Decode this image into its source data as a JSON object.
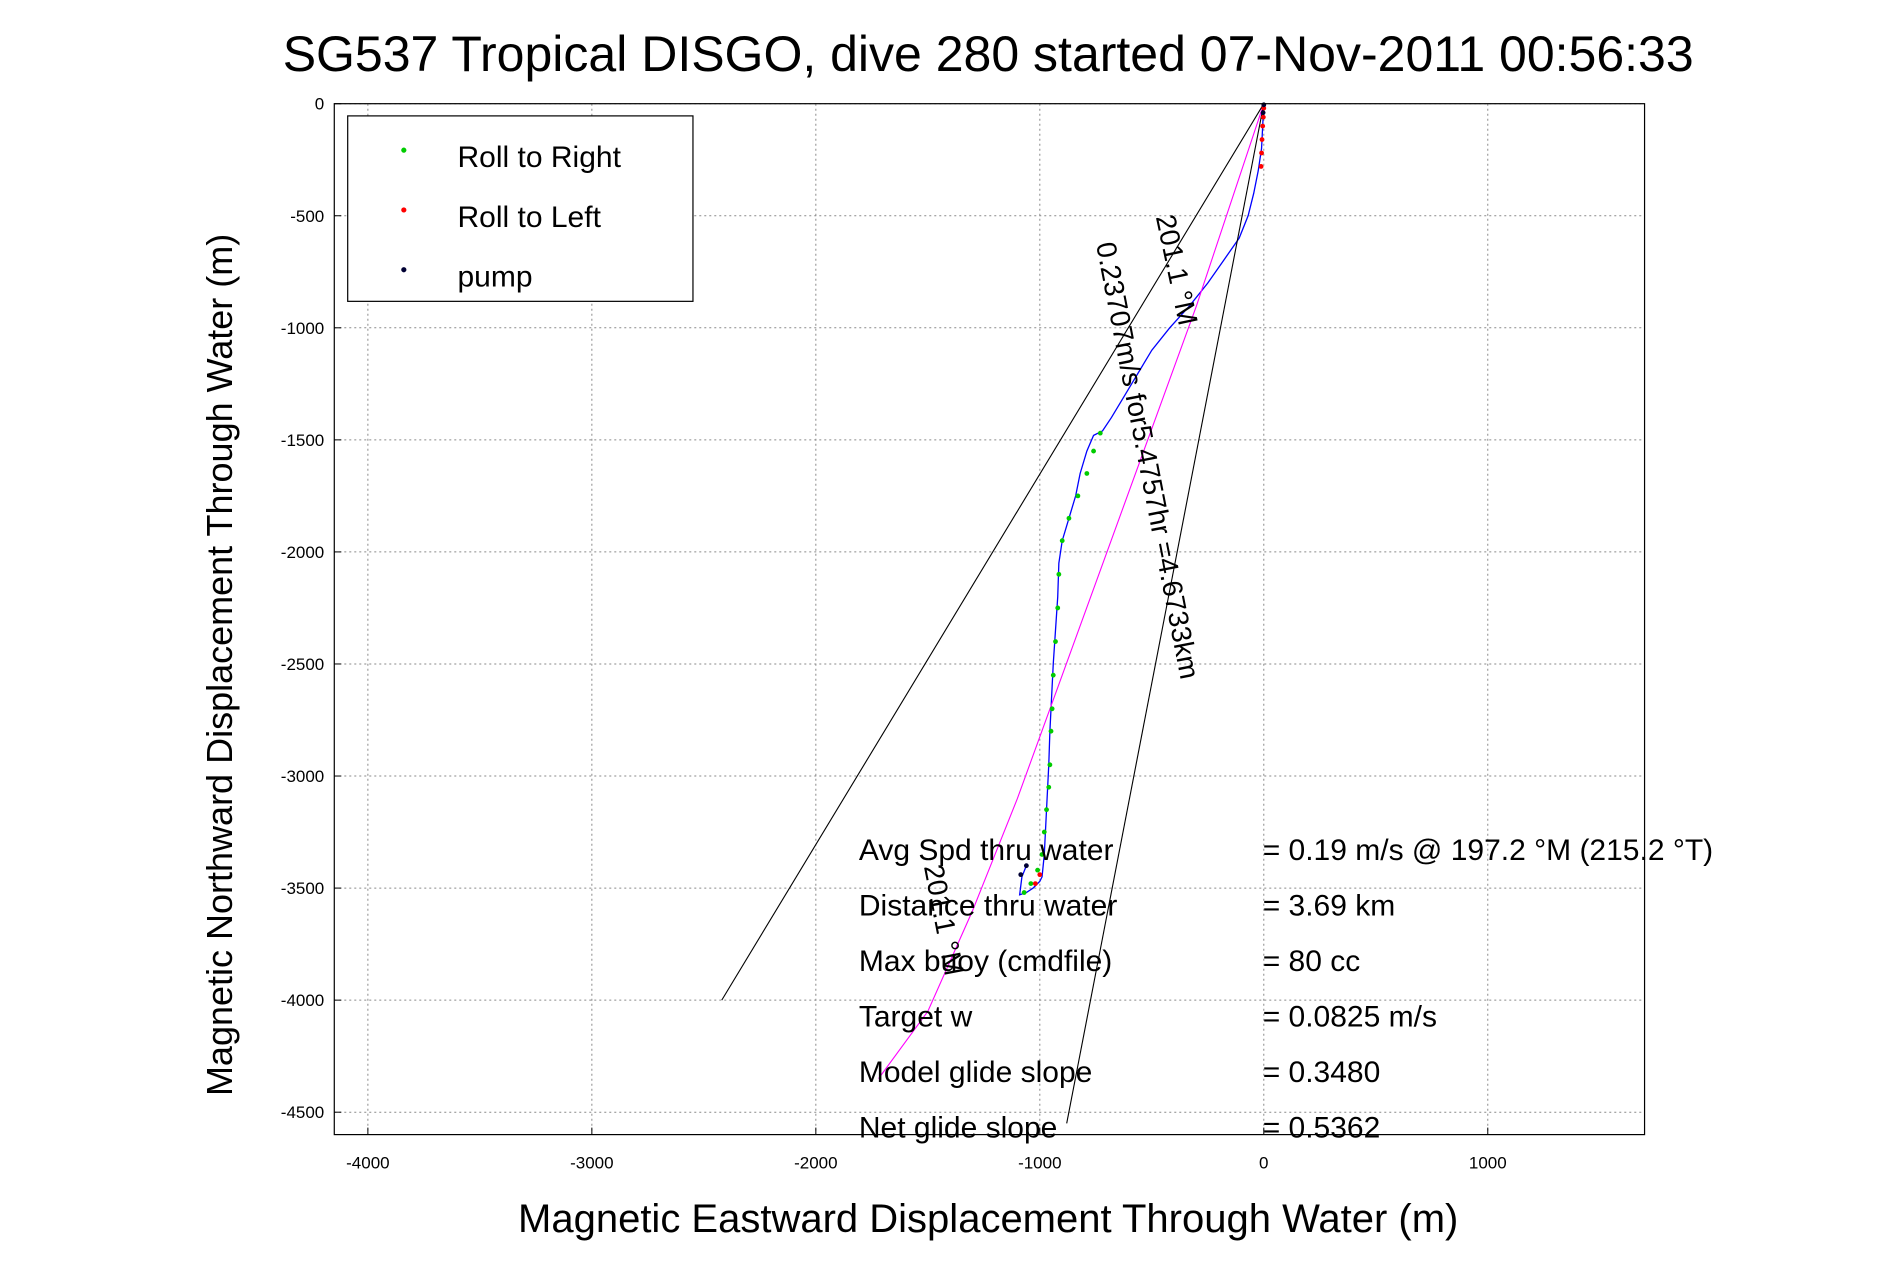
{
  "chart_data": {
    "type": "scatter",
    "title": "SG537 Tropical DISGO, dive 280 started 07-Nov-2011 00:56:33",
    "xlabel": "Magnetic Eastward Displacement Through Water (m)",
    "ylabel": "Magnetic Northward Displacement Through Water (m)",
    "xlim": [
      -4150,
      1700
    ],
    "ylim": [
      -4600,
      0
    ],
    "grid": true,
    "x_ticks": [
      -4000,
      -3000,
      -2000,
      -1000,
      0,
      1000
    ],
    "y_ticks": [
      0,
      -500,
      -1000,
      -1500,
      -2000,
      -2500,
      -3000,
      -3500,
      -4000,
      -4500
    ],
    "legend_location": "top-left",
    "legend": [
      {
        "label": "Roll to Right",
        "color": "#00cc00",
        "marker": "dot"
      },
      {
        "label": "Roll to Left",
        "color": "#ff0000",
        "marker": "dot"
      },
      {
        "label": "pump",
        "color": "#000033",
        "marker": "dot"
      }
    ],
    "series": [
      {
        "role": "track",
        "color": "#0000ff",
        "x": [
          0,
          -5,
          -10,
          -25,
          -45,
          -70,
          -110,
          -180,
          -250,
          -330,
          -420,
          -500,
          -560,
          -620,
          -680,
          -720,
          -760,
          -790,
          -820,
          -840,
          -870,
          -900,
          -915,
          -920,
          -930,
          -940,
          -945,
          -950,
          -955,
          -960,
          -965,
          -970,
          -975,
          -980,
          -985,
          -990,
          -1000,
          -1030,
          -1060,
          -1090,
          -1080,
          -1060
        ],
        "y": [
          0,
          -100,
          -200,
          -300,
          -400,
          -500,
          -600,
          -700,
          -800,
          -900,
          -1000,
          -1100,
          -1200,
          -1300,
          -1400,
          -1460,
          -1480,
          -1550,
          -1650,
          -1750,
          -1850,
          -1950,
          -2050,
          -2200,
          -2350,
          -2500,
          -2600,
          -2700,
          -2800,
          -2950,
          -3050,
          -3150,
          -3250,
          -3350,
          -3400,
          -3450,
          -3470,
          -3500,
          -3520,
          -3530,
          -3450,
          -3400
        ]
      },
      {
        "role": "ctd_track",
        "color": "#ff00ff",
        "x": [
          0,
          -100,
          -300,
          -500,
          -700,
          -900,
          -1100,
          -1300,
          -1500,
          -1720
        ],
        "y": [
          0,
          -300,
          -900,
          -1450,
          -2000,
          -2550,
          -3100,
          -3600,
          -4050,
          -4350
        ]
      },
      {
        "name": "Roll to Right",
        "color": "#00cc00",
        "x": [
          -730,
          -760,
          -790,
          -830,
          -870,
          -900,
          -915,
          -920,
          -930,
          -940,
          -945,
          -950,
          -955,
          -960,
          -970,
          -980,
          -990,
          -1010,
          -1040,
          -1070
        ],
        "y": [
          -1470,
          -1550,
          -1650,
          -1750,
          -1850,
          -1950,
          -2100,
          -2250,
          -2400,
          -2550,
          -2700,
          -2800,
          -2950,
          -3050,
          -3150,
          -3250,
          -3350,
          -3420,
          -3480,
          -3520
        ]
      },
      {
        "name": "Roll to Left",
        "color": "#ff0000",
        "x": [
          0,
          -2,
          -5,
          -8,
          -10,
          -12,
          -1000,
          -1020
        ],
        "y": [
          -20,
          -60,
          -100,
          -160,
          -220,
          -280,
          -3440,
          -3480
        ]
      },
      {
        "name": "pump",
        "color": "#000033",
        "x": [
          0,
          -3,
          -1060,
          -1085
        ],
        "y": [
          -5,
          -40,
          -3400,
          -3440
        ]
      },
      {
        "role": "direction_cone_left",
        "color": "#000000",
        "x": [
          0,
          -2420
        ],
        "y": [
          0,
          -4000
        ]
      },
      {
        "role": "direction_cone_right",
        "color": "#000000",
        "x": [
          0,
          -880
        ],
        "y": [
          0,
          -4550
        ]
      }
    ],
    "annotations": [
      {
        "text": "201.1 °M",
        "x": -430,
        "y": -750,
        "rotation": 78
      },
      {
        "text": "0.23707m/s for5.4757hr =4.6733km",
        "x": -560,
        "y": -1600,
        "rotation": 79
      },
      {
        "text": "201.1 °M",
        "x": -1470,
        "y": -3650,
        "rotation": 79
      }
    ],
    "stats": [
      {
        "label": "Avg Spd thru water",
        "value": "=  0.19 m/s @ 197.2 °M (215.2 °T)"
      },
      {
        "label": "Distance thru water",
        "value": "=  3.69 km"
      },
      {
        "label": "Max buoy (cmdfile)",
        "value": "= 80 cc"
      },
      {
        "label": "Target w",
        "value": "= 0.0825 m/s"
      },
      {
        "label": "Model glide slope",
        "value": "= 0.3480"
      },
      {
        "label": "Net glide slope",
        "value": "= 0.5362"
      }
    ]
  }
}
